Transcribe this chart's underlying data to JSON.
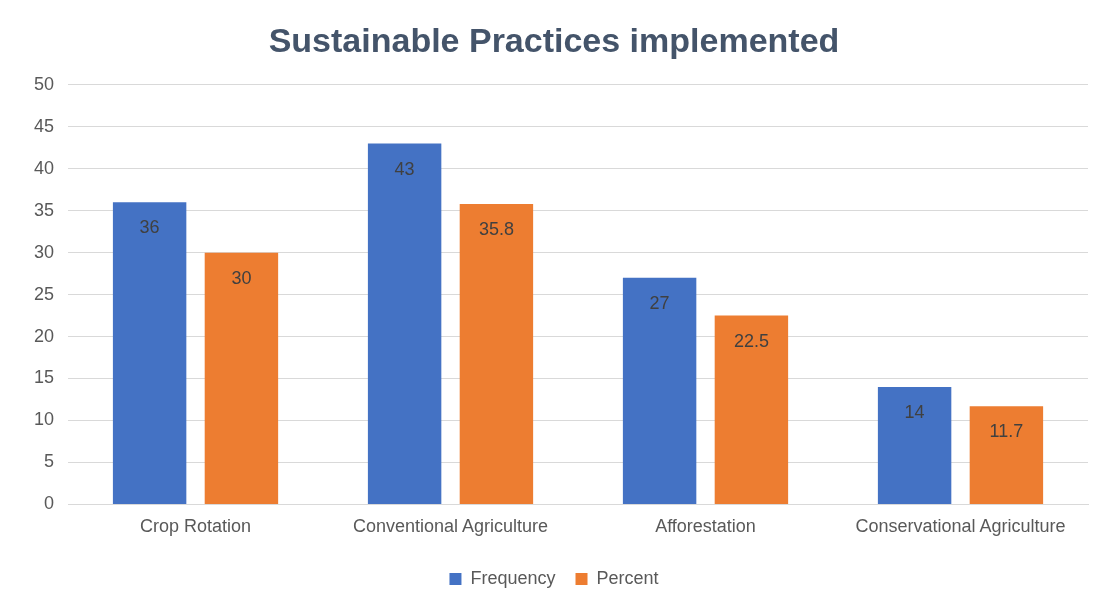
{
  "chart_data": {
    "type": "bar",
    "title": "Sustainable Practices implemented",
    "categories": [
      "Crop Rotation",
      "Conventional Agriculture",
      "Afforestation",
      "Conservational Agriculture"
    ],
    "series": [
      {
        "name": "Frequency",
        "color": "#4472c4",
        "values": [
          36,
          43,
          27,
          14
        ]
      },
      {
        "name": "Percent",
        "color": "#ed7d31",
        "values": [
          30,
          35.8,
          22.5,
          11.7
        ]
      }
    ],
    "ylim": [
      0,
      50
    ],
    "yticks": [
      0,
      5,
      10,
      15,
      20,
      25,
      30,
      35,
      40,
      45,
      50
    ],
    "grid": "y",
    "legend": "bottom",
    "data_labels": true
  }
}
